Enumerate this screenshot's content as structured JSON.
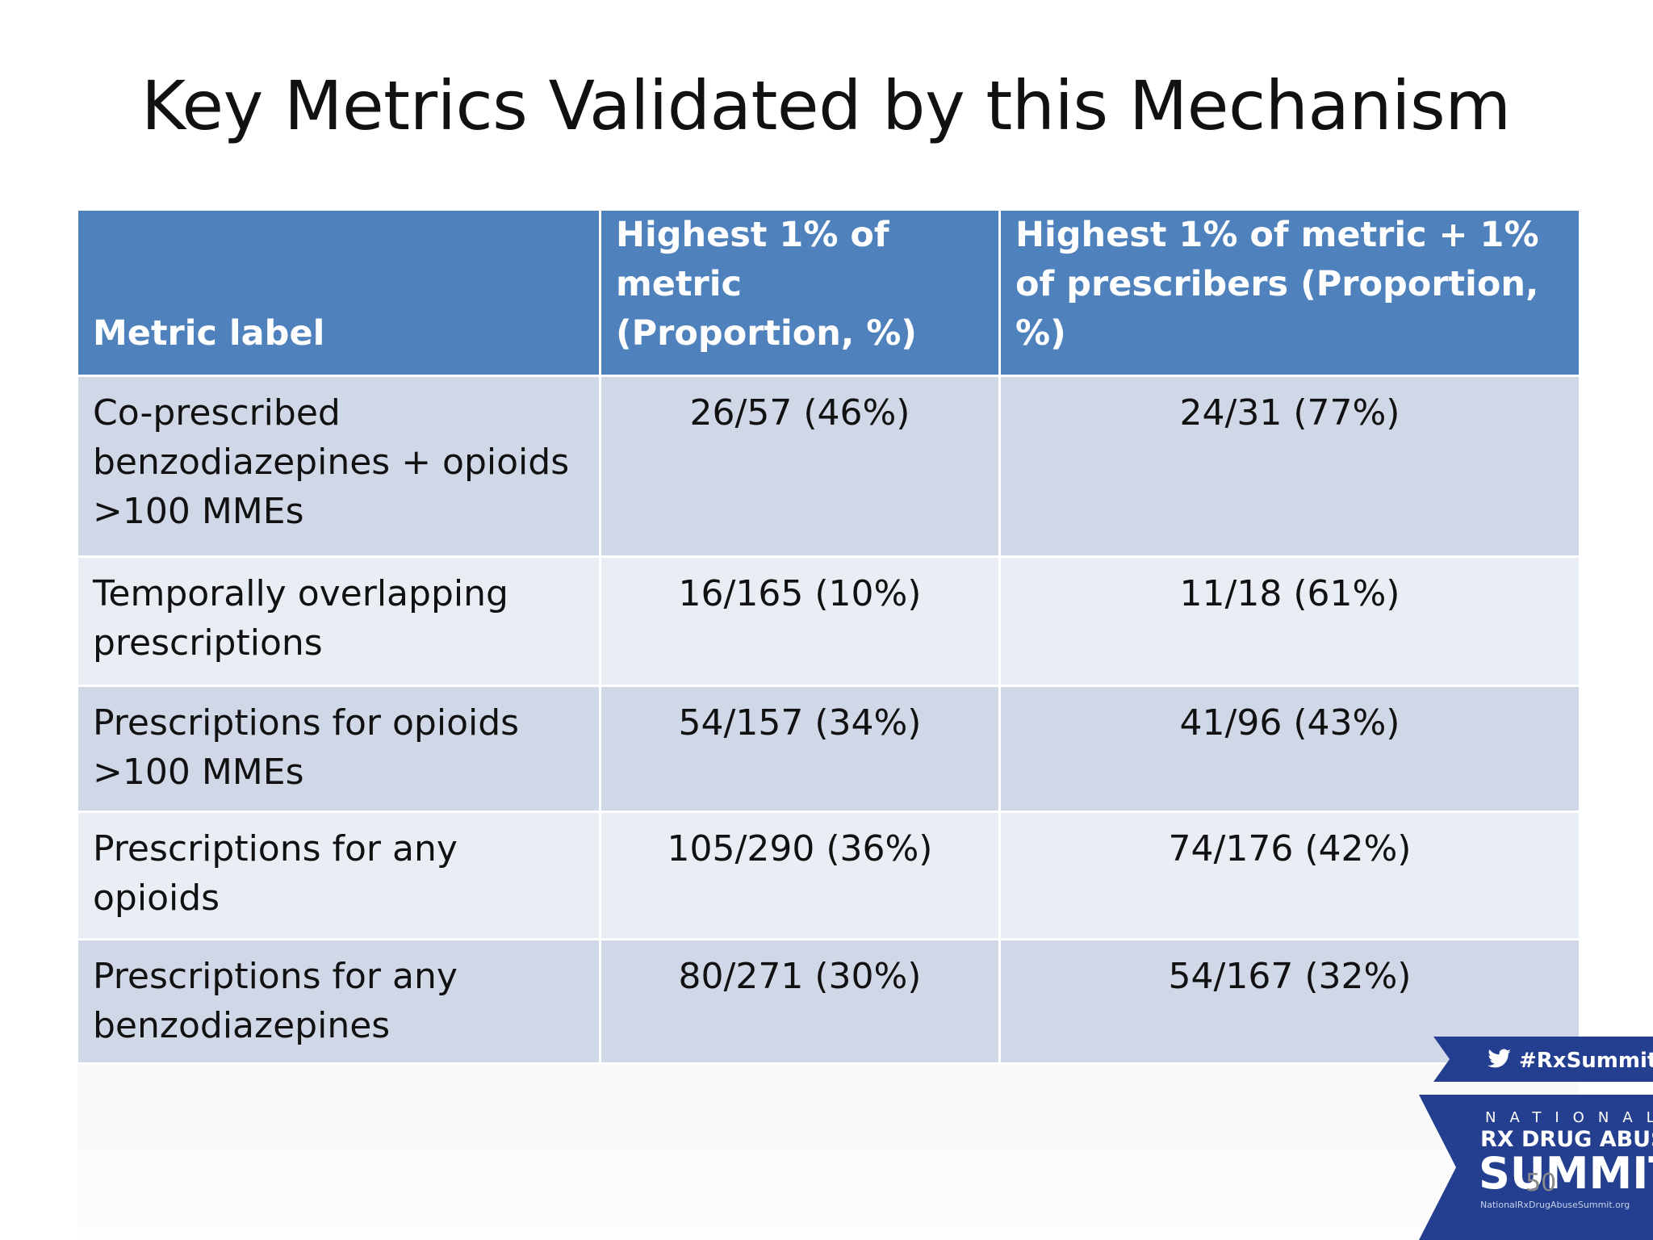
{
  "slide": {
    "title": "Key Metrics Validated by this Mechanism",
    "page_number": "50"
  },
  "table": {
    "headers": [
      "Metric label",
      "Highest 1% of metric (Proportion, %)",
      "Highest 1% of metric + 1% of prescribers (Proportion, %)"
    ],
    "rows": [
      [
        "Co-prescribed benzodiazepines + opioids >100 MMEs",
        "26/57 (46%)",
        "24/31 (77%)"
      ],
      [
        "Temporally overlapping prescriptions",
        "16/165 (10%)",
        "11/18 (61%)"
      ],
      [
        "Prescriptions for opioids >100 MMEs",
        "54/157 (34%)",
        "41/96 (43%)"
      ],
      [
        "Prescriptions for any opioids",
        "105/290 (36%)",
        "74/176 (42%)"
      ],
      [
        "Prescriptions for any benzodiazepines",
        "80/271 (30%)",
        "54/167 (32%)"
      ]
    ]
  },
  "logo": {
    "hashtag": "#RxSummit",
    "line1": "NATIONAL",
    "line2": "RX DRUG ABUSE",
    "line3": "SUMMIT",
    "url": "NationalRxDrugAbuseSummit.org",
    "icon": "twitter-bird-icon",
    "colors": {
      "banner": "#243f8f",
      "text": "#ffffff"
    }
  },
  "colors": {
    "header_bg": "#4f81bd",
    "row_dark": "#d0d8e8",
    "row_light": "#e9edf4"
  }
}
